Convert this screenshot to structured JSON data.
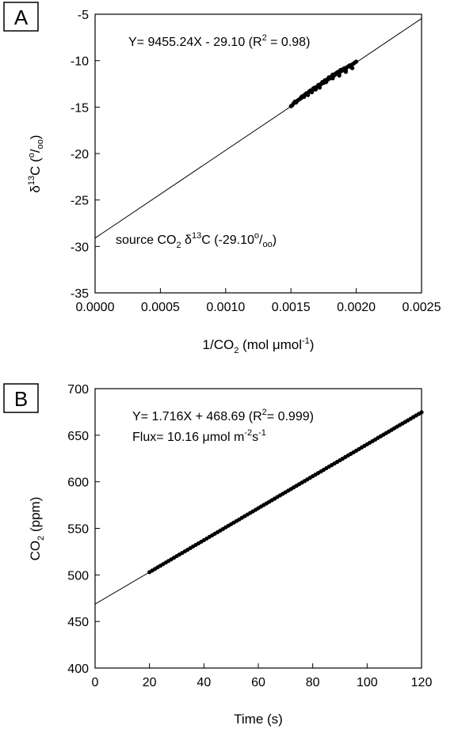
{
  "chart_data": [
    {
      "type": "scatter",
      "panel_label": "A",
      "xlabel_parts": [
        "1/CO",
        "2",
        " (mol μmol",
        "-1",
        ")"
      ],
      "ylabel_parts": [
        "δ",
        "13",
        "C (",
        "o",
        "/",
        "oo",
        ")"
      ],
      "xlim": [
        0.0,
        0.0025
      ],
      "ylim": [
        -35,
        -5
      ],
      "xticks": [
        "0.0000",
        "0.0005",
        "0.0010",
        "0.0015",
        "0.0020",
        "0.0025"
      ],
      "xtick_values": [
        0.0,
        0.0005,
        0.001,
        0.0015,
        0.002,
        0.0025
      ],
      "yticks": [
        "-5",
        "-10",
        "-15",
        "-20",
        "-25",
        "-30",
        "-35"
      ],
      "ytick_values": [
        -5,
        -10,
        -15,
        -20,
        -25,
        -30,
        -35
      ],
      "regression": {
        "slope": 9455.24,
        "intercept": -29.1
      },
      "annotation_eq_parts": [
        "Y= 9455.24X - 29.10 (R",
        "2",
        " = 0.98)"
      ],
      "annotation_source_parts": [
        "source CO",
        "2",
        " δ",
        "13",
        "C (-29.10",
        "o",
        "/",
        "oo",
        ")"
      ],
      "x": [
        0.0015,
        0.00151,
        0.00152,
        0.00154,
        0.00155,
        0.00156,
        0.00157,
        0.00158,
        0.00159,
        0.0016,
        0.00161,
        0.00162,
        0.00163,
        0.00164,
        0.00165,
        0.00166,
        0.00167,
        0.00168,
        0.00169,
        0.0017,
        0.00171,
        0.00172,
        0.00173,
        0.00174,
        0.00175,
        0.00176,
        0.00177,
        0.00178,
        0.00179,
        0.0018,
        0.00181,
        0.00182,
        0.00183,
        0.00184,
        0.00185,
        0.00186,
        0.00187,
        0.00188,
        0.00189,
        0.0019,
        0.00191,
        0.00192,
        0.00193,
        0.00194,
        0.00195,
        0.00196,
        0.00197,
        0.00198,
        0.00199,
        0.002,
        0.00153,
        0.00158,
        0.00163,
        0.00168,
        0.00172,
        0.00177,
        0.00182,
        0.00187,
        0.00192,
        0.00197
      ],
      "y": [
        -14.9,
        -14.8,
        -14.6,
        -14.5,
        -14.3,
        -14.2,
        -14.1,
        -14.0,
        -13.8,
        -13.9,
        -13.6,
        -13.5,
        -13.7,
        -13.3,
        -13.2,
        -13.4,
        -13.0,
        -12.9,
        -13.1,
        -12.8,
        -12.6,
        -12.7,
        -12.5,
        -12.3,
        -12.4,
        -12.1,
        -12.2,
        -12.0,
        -11.8,
        -11.9,
        -11.7,
        -11.5,
        -11.6,
        -11.4,
        -11.3,
        -11.2,
        -11.4,
        -11.0,
        -11.1,
        -10.9,
        -10.8,
        -11.0,
        -10.7,
        -10.6,
        -10.5,
        -10.7,
        -10.4,
        -10.3,
        -10.2,
        -10.1,
        -14.4,
        -13.9,
        -13.5,
        -13.1,
        -12.9,
        -12.3,
        -11.9,
        -11.6,
        -11.2,
        -10.8
      ]
    },
    {
      "type": "scatter",
      "panel_label": "B",
      "xlabel_parts": [
        "Time (s)"
      ],
      "ylabel_parts": [
        "CO",
        "2",
        " (ppm)"
      ],
      "xlim": [
        0,
        120
      ],
      "ylim": [
        400,
        700
      ],
      "xticks": [
        "0",
        "20",
        "40",
        "60",
        "80",
        "100",
        "120"
      ],
      "xtick_values": [
        0,
        20,
        40,
        60,
        80,
        100,
        120
      ],
      "yticks": [
        "700",
        "650",
        "600",
        "550",
        "500",
        "450",
        "400"
      ],
      "ytick_values": [
        700,
        650,
        600,
        550,
        500,
        450,
        400
      ],
      "regression": {
        "slope": 1.716,
        "intercept": 468.69
      },
      "annotation_eq_parts": [
        "Y= 1.716X + 468.69 (R",
        "2",
        "= 0.999)"
      ],
      "annotation_flux_parts": [
        "Flux= 10.16 μmol m",
        "-2",
        "s",
        "-1"
      ],
      "x_start": 20,
      "x_end": 120,
      "x_step": 1
    }
  ]
}
